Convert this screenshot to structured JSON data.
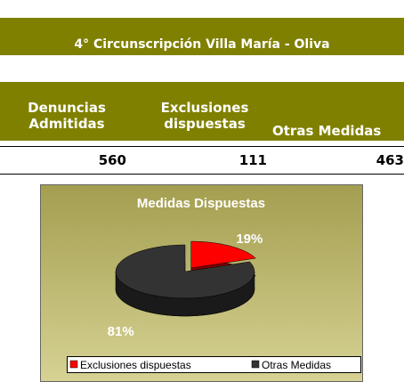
{
  "title": "4° Circunscripción Villa María - Oliva",
  "table": {
    "headers": [
      "Denuncias Admitidas",
      "Exclusiones dispuestas",
      "Otras Medidas"
    ],
    "rows": [
      [
        "560",
        "111",
        "463"
      ]
    ]
  },
  "chart_data": {
    "type": "pie",
    "title": "Medidas Dispuestas",
    "categories": [
      "Exclusiones dispuestas",
      "Otras Medidas"
    ],
    "values": [
      19,
      81
    ],
    "value_labels": [
      "19%",
      "81%"
    ],
    "colors": [
      "#ff0000",
      "#333333"
    ],
    "exploded": [
      true,
      false
    ],
    "legend": "bottom"
  }
}
